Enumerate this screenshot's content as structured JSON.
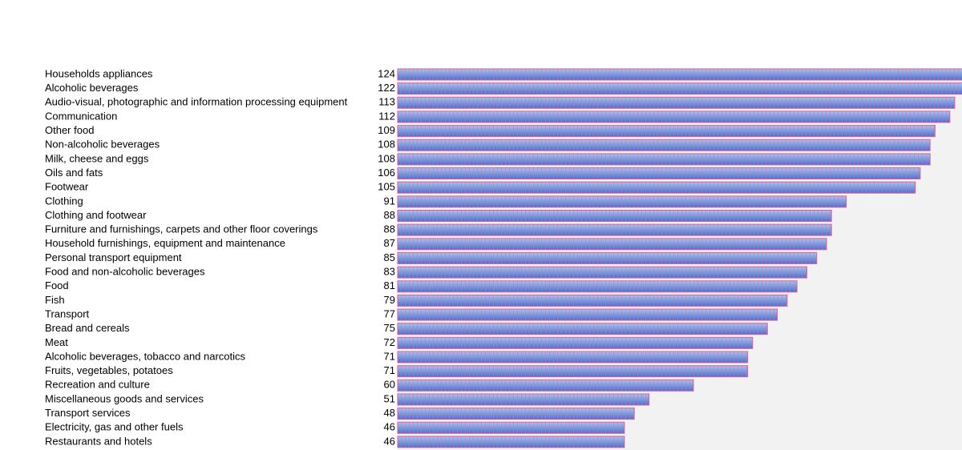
{
  "chart_data": {
    "type": "bar",
    "orientation": "horizontal",
    "color": "#5b7fd6",
    "categories": [
      "Households appliances",
      "Alcoholic beverages",
      "Audio-visual, photographic and information processing equipment",
      "Communication",
      "Other food",
      "Non-alcoholic beverages",
      "Milk, cheese and eggs",
      "Oils and fats",
      "Footwear",
      "Clothing",
      "Clothing and footwear",
      "Furniture and furnishings, carpets and other floor coverings",
      "Household furnishings, equipment and maintenance",
      "Personal transport equipment",
      "Food and non-alcoholic beverages",
      "Food",
      "Fish",
      "Transport",
      "Bread and cereals",
      "Meat",
      "Alcoholic beverages, tobacco and narcotics",
      "Fruits, vegetables, potatoes",
      "Recreation and culture",
      "Miscellaneous goods and services",
      "Transport services",
      "Electricity, gas and other fuels",
      "Restaurants and hotels"
    ],
    "values": [
      124,
      122,
      113,
      112,
      109,
      108,
      108,
      106,
      105,
      91,
      88,
      88,
      87,
      85,
      83,
      81,
      79,
      77,
      75,
      72,
      71,
      71,
      60,
      51,
      48,
      46,
      46
    ]
  }
}
